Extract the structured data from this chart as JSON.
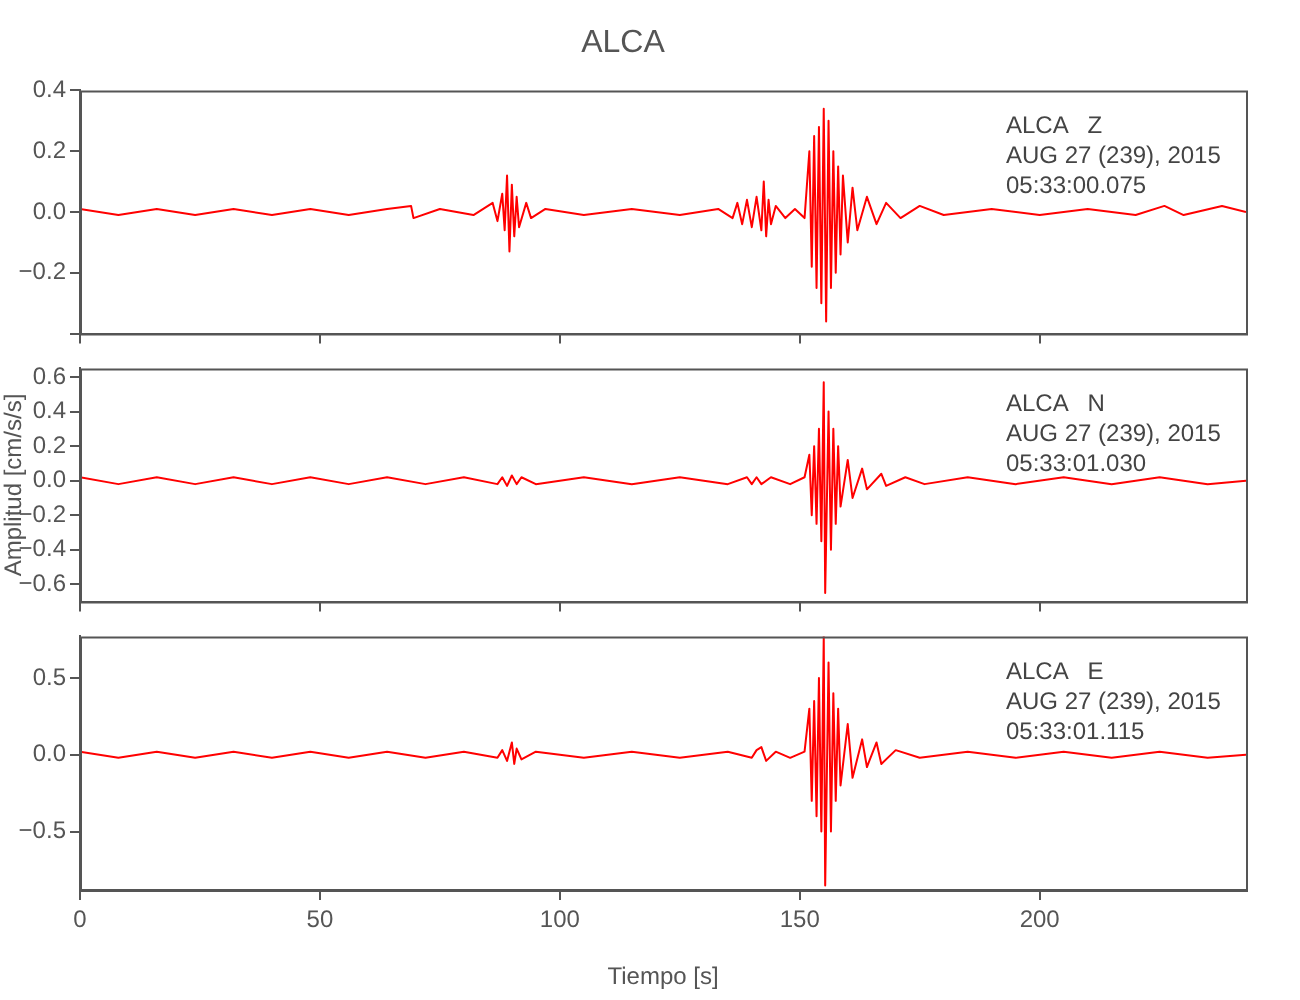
{
  "chart_data": [
    {
      "type": "line",
      "title": "ALCA",
      "annotations": [
        "ALCA   Z",
        "AUG 27 (239), 2015",
        "05:33:00.075"
      ],
      "xlim": [
        0,
        243
      ],
      "xticks": [
        0,
        50,
        100,
        150,
        200
      ],
      "ylim": [
        -0.4,
        0.4
      ],
      "yticks": [
        {
          "value": -0.4,
          "label": null
        },
        {
          "value": -0.2,
          "label": "−0.2"
        },
        {
          "value": 0,
          "label": "0.0"
        },
        {
          "value": 0.2,
          "label": "0.2"
        },
        {
          "value": 0.4,
          "label": "0.4"
        }
      ],
      "tick_labels": "y",
      "marker": "none",
      "line_style": "solid",
      "series": [
        {
          "color": "#ff0000",
          "x": [
            0,
            8,
            16,
            24,
            32,
            40,
            48,
            56,
            64,
            69,
            69.5,
            75,
            82,
            86,
            87,
            88,
            88.5,
            89,
            89.5,
            90,
            90.5,
            91,
            91.5,
            93,
            94,
            97,
            105,
            115,
            125,
            133,
            136,
            137,
            138,
            139,
            140,
            141,
            142,
            142.5,
            143,
            143.5,
            144,
            145,
            147,
            149,
            151,
            152,
            152.5,
            153,
            153.5,
            154,
            154.5,
            155,
            155.5,
            156,
            156.5,
            157,
            157.5,
            158,
            158.5,
            159,
            160,
            161,
            162,
            164,
            166,
            168,
            171,
            175,
            180,
            190,
            200,
            210,
            220,
            226,
            230,
            238,
            243
          ],
          "values": [
            0.01,
            -0.01,
            0.01,
            -0.01,
            0.01,
            -0.01,
            0.01,
            -0.01,
            0.01,
            0.02,
            -0.02,
            0.01,
            -0.01,
            0.03,
            -0.03,
            0.06,
            -0.06,
            0.12,
            -0.13,
            0.09,
            -0.08,
            0.05,
            -0.05,
            0.03,
            -0.02,
            0.01,
            -0.01,
            0.01,
            -0.01,
            0.01,
            -0.02,
            0.03,
            -0.04,
            0.04,
            -0.05,
            0.05,
            -0.06,
            0.1,
            -0.08,
            0.04,
            -0.04,
            0.02,
            -0.02,
            0.01,
            -0.02,
            0.2,
            -0.18,
            0.25,
            -0.25,
            0.28,
            -0.3,
            0.34,
            -0.36,
            0.3,
            -0.25,
            0.2,
            -0.2,
            0.15,
            -0.14,
            0.12,
            -0.1,
            0.08,
            -0.06,
            0.05,
            -0.04,
            0.03,
            -0.02,
            0.02,
            -0.01,
            0.01,
            -0.01,
            0.01,
            -0.01,
            0.02,
            -0.01,
            0.02,
            0
          ]
        }
      ]
    },
    {
      "type": "line",
      "ylabel": "Amplitud [cm/s/s]",
      "annotations": [
        "ALCA   N",
        "AUG 27 (239), 2015",
        "05:33:01.030"
      ],
      "xlim": [
        0,
        243
      ],
      "xticks": [
        0,
        50,
        100,
        150,
        200
      ],
      "ylim": [
        -0.7,
        0.65
      ],
      "yticks": [
        {
          "value": -0.6,
          "label": "−0.6"
        },
        {
          "value": -0.4,
          "label": "−0.4"
        },
        {
          "value": -0.2,
          "label": "−0.2"
        },
        {
          "value": 0,
          "label": "0.0"
        },
        {
          "value": 0.2,
          "label": "0.2"
        },
        {
          "value": 0.4,
          "label": "0.4"
        },
        {
          "value": 0.6,
          "label": "0.6"
        }
      ],
      "tick_labels": "y",
      "marker": "none",
      "line_style": "solid",
      "series": [
        {
          "color": "#ff0000",
          "x": [
            0,
            8,
            16,
            24,
            32,
            40,
            48,
            56,
            64,
            72,
            80,
            87,
            88,
            89,
            90,
            91,
            92,
            95,
            105,
            115,
            125,
            135,
            139,
            140,
            141,
            142,
            144,
            148,
            151,
            152,
            152.5,
            153,
            153.5,
            154,
            154.5,
            155,
            155.3,
            156,
            156.5,
            157,
            157.5,
            158,
            158.5,
            160,
            161,
            163,
            164,
            167,
            168,
            172,
            176,
            185,
            195,
            205,
            215,
            225,
            235,
            243
          ],
          "values": [
            0.02,
            -0.02,
            0.02,
            -0.02,
            0.02,
            -0.02,
            0.02,
            -0.02,
            0.02,
            -0.02,
            0.02,
            -0.02,
            0.02,
            -0.03,
            0.03,
            -0.02,
            0.02,
            -0.02,
            0.02,
            -0.02,
            0.02,
            -0.02,
            0.02,
            -0.02,
            0.02,
            -0.02,
            0.02,
            -0.02,
            0.02,
            0.15,
            -0.2,
            0.2,
            -0.25,
            0.3,
            -0.35,
            0.57,
            -0.65,
            0.4,
            -0.4,
            0.3,
            -0.25,
            0.2,
            -0.15,
            0.12,
            -0.1,
            0.07,
            -0.05,
            0.04,
            -0.03,
            0.02,
            -0.02,
            0.02,
            -0.02,
            0.02,
            -0.02,
            0.02,
            -0.02,
            0
          ]
        }
      ]
    },
    {
      "type": "line",
      "xlabel": "Tiempo [s]",
      "annotations": [
        "ALCA   E",
        "AUG 27 (239), 2015",
        "05:33:01.115"
      ],
      "xlim": [
        0,
        243
      ],
      "xticks": [
        0,
        50,
        100,
        150,
        200
      ],
      "ylim": [
        -0.88,
        0.77
      ],
      "yticks": [
        {
          "value": -0.5,
          "label": "−0.5"
        },
        {
          "value": 0,
          "label": "0.0"
        },
        {
          "value": 0.5,
          "label": "0.5"
        }
      ],
      "marker": "none",
      "line_style": "solid",
      "series": [
        {
          "color": "#ff0000",
          "x": [
            0,
            8,
            16,
            24,
            32,
            40,
            48,
            56,
            64,
            72,
            80,
            87,
            88,
            89,
            90,
            90.5,
            91,
            92,
            95,
            105,
            115,
            125,
            135,
            140,
            141,
            142,
            143,
            145,
            148,
            151,
            152,
            152.5,
            153,
            153.5,
            154,
            154.5,
            155,
            155.3,
            156,
            156.5,
            157,
            157.5,
            158,
            158.5,
            160,
            161,
            163,
            164,
            166,
            167,
            170,
            175,
            185,
            195,
            205,
            215,
            225,
            235,
            243
          ],
          "values": [
            0.02,
            -0.02,
            0.02,
            -0.02,
            0.02,
            -0.02,
            0.02,
            -0.02,
            0.02,
            -0.02,
            0.02,
            -0.02,
            0.03,
            -0.04,
            0.08,
            -0.06,
            0.04,
            -0.03,
            0.02,
            -0.02,
            0.02,
            -0.02,
            0.02,
            -0.02,
            0.03,
            0.05,
            -0.04,
            0.02,
            -0.02,
            0.02,
            0.3,
            -0.3,
            0.35,
            -0.4,
            0.5,
            -0.5,
            0.77,
            -0.85,
            0.6,
            -0.5,
            0.4,
            -0.3,
            0.3,
            -0.2,
            0.2,
            -0.15,
            0.1,
            -0.08,
            0.08,
            -0.06,
            0.03,
            -0.02,
            0.02,
            -0.02,
            0.02,
            -0.02,
            0.02,
            -0.02,
            0
          ]
        }
      ]
    }
  ]
}
